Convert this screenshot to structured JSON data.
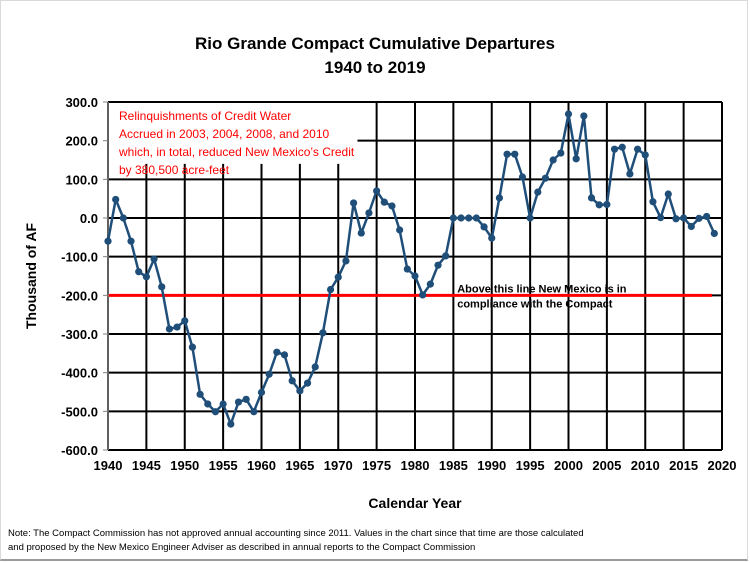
{
  "chart_data": {
    "type": "line",
    "title": "Rio Grande Compact Cumulative Departures",
    "subtitle": "1940 to 2019",
    "xlabel": "Calendar Year",
    "ylabel": "Thousand of AF",
    "xlim": [
      1940,
      2020
    ],
    "ylim": [
      -600,
      300
    ],
    "grid": true,
    "x_ticks": [
      "1940",
      "1945",
      "1950",
      "1955",
      "1960",
      "1965",
      "1970",
      "1975",
      "1980",
      "1985",
      "1990",
      "1995",
      "2000",
      "2005",
      "2010",
      "2015",
      "2020"
    ],
    "y_ticks": [
      "300.0",
      "200.0",
      "100.0",
      "0.0",
      "-100.0",
      "-200.0",
      "-300.0",
      "-400.0",
      "-500.0",
      "-600.0"
    ],
    "series": [
      {
        "name": "Cumulative Departure",
        "color": "#1f4e79",
        "x": [
          1940,
          1941,
          1942,
          1943,
          1944,
          1945,
          1946,
          1947,
          1948,
          1949,
          1950,
          1951,
          1952,
          1953,
          1954,
          1955,
          1956,
          1957,
          1958,
          1959,
          1960,
          1961,
          1962,
          1963,
          1964,
          1965,
          1966,
          1967,
          1968,
          1969,
          1970,
          1971,
          1972,
          1973,
          1974,
          1975,
          1976,
          1977,
          1978,
          1979,
          1980,
          1981,
          1982,
          1983,
          1984,
          1985,
          1986,
          1987,
          1988,
          1989,
          1990,
          1991,
          1992,
          1993,
          1994,
          1995,
          1996,
          1997,
          1998,
          1999,
          2000,
          2001,
          2002,
          2003,
          2004,
          2005,
          2006,
          2007,
          2008,
          2009,
          2010,
          2011,
          2012,
          2013,
          2014,
          2015,
          2016,
          2017,
          2018,
          2019
        ],
        "values": [
          -60,
          48,
          0,
          -60,
          -139,
          -152,
          -106,
          -178,
          -287,
          -282,
          -266,
          -334,
          -456,
          -481,
          -501,
          -481,
          -533,
          -476,
          -469,
          -501,
          -451,
          -404,
          -347,
          -354,
          -421,
          -447,
          -427,
          -385,
          -297,
          -185,
          -153,
          -111,
          39,
          -39,
          13,
          70,
          41,
          31,
          -31,
          -132,
          -150,
          -199,
          -171,
          -122,
          -98,
          0,
          0,
          0,
          0,
          -23,
          -52,
          52,
          165,
          165,
          106,
          0,
          67,
          103,
          150,
          168,
          269,
          153,
          264,
          52,
          34,
          35,
          178,
          183,
          114,
          178,
          163,
          42,
          1,
          62,
          -2,
          0,
          -22,
          -1,
          4,
          -40
        ]
      }
    ],
    "reference_line": {
      "value": -200,
      "color": "#ff0000",
      "label_line1": "Above this line New Mexico is in",
      "label_line2": "compliance with  the Compact"
    },
    "annotation": {
      "color": "#ff0000",
      "lines": [
        "Relinquishments of Credit Water",
        "Accrued in 2003, 2004, 2008, and 2010",
        "which, in total, reduced New Mexico’s Credit",
        "by 380,500 acre-feet"
      ]
    },
    "legend": "none"
  },
  "note": {
    "line1": "Note:  The Compact Commission has not approved annual accounting since 2011.  Values in the chart since that time are those calculated",
    "line2": " and proposed by the New Mexico Engineer Adviser as described in annual reports to the Compact Commission"
  }
}
